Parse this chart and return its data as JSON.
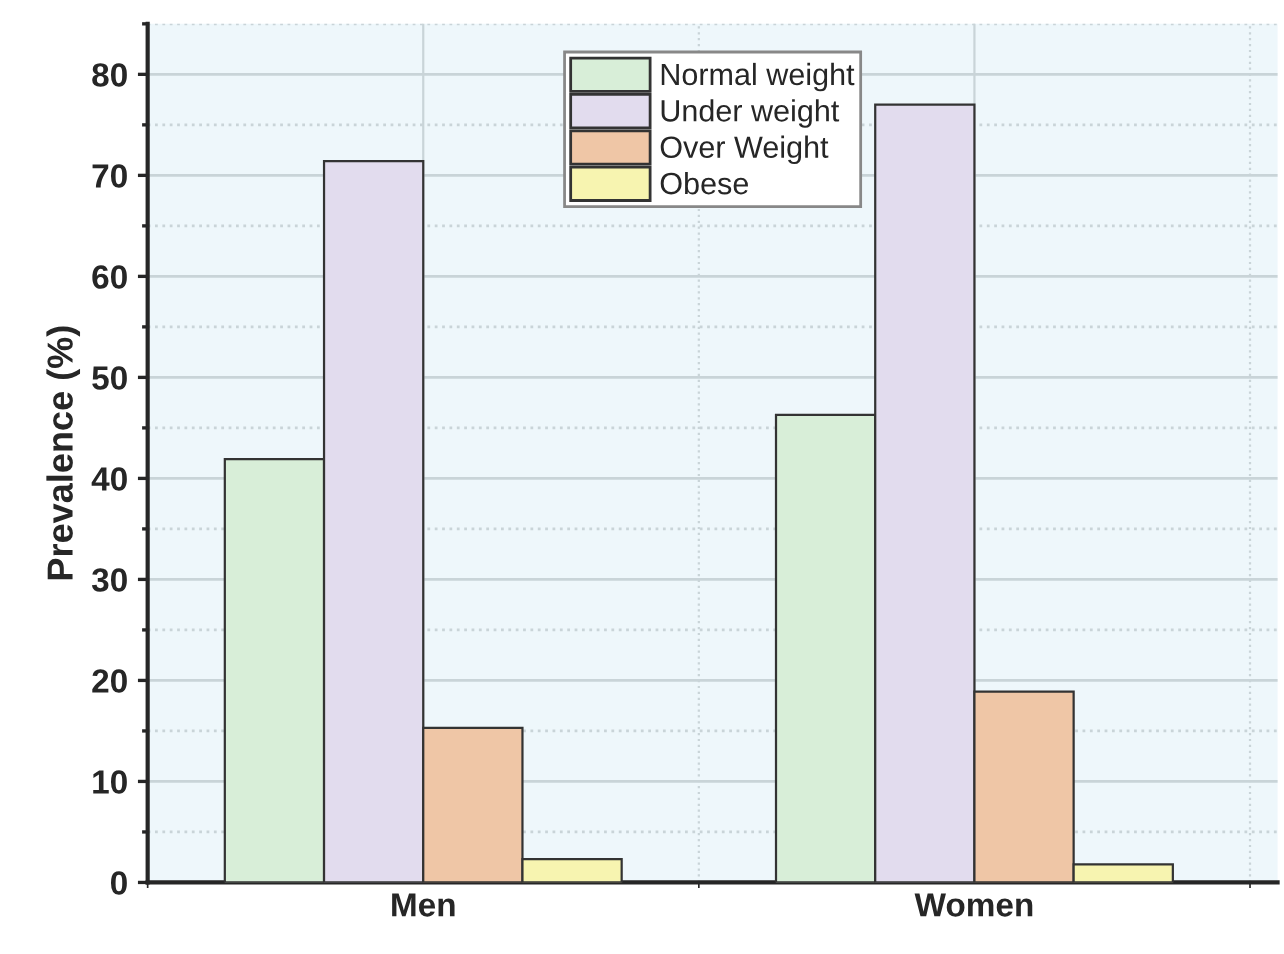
{
  "chart_data": {
    "type": "bar",
    "ylabel": "Prevalence (%)",
    "categories": [
      "Men",
      "Women"
    ],
    "series": [
      {
        "name": "Normal weight",
        "color": "#d8eed8",
        "values": [
          41.9,
          46.3
        ]
      },
      {
        "name": "Under weight",
        "color": "#e2dcee",
        "values": [
          71.4,
          77.0
        ]
      },
      {
        "name": "Over Weight",
        "color": "#efc6a6",
        "values": [
          15.3,
          18.9
        ]
      },
      {
        "name": "Obese",
        "color": "#f7f4b0",
        "values": [
          2.3,
          1.8
        ]
      }
    ],
    "ylim": [
      0,
      85
    ],
    "yticks": [
      0,
      10,
      20,
      30,
      40,
      50,
      60,
      70,
      80
    ],
    "grid": true,
    "legend": "top"
  }
}
